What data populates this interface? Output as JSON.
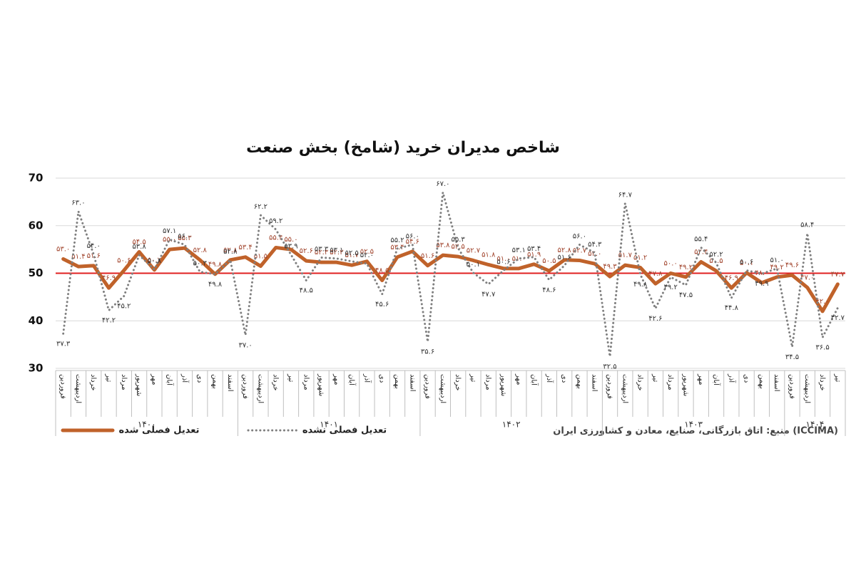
{
  "chart_data": {
    "type": "line",
    "title": "شاخص مدیران خرید (شامخ) بخش صنعت",
    "categories": [
      "فروردین",
      "اردیبهشت",
      "خرداد",
      "تیر",
      "مرداد",
      "شهریور",
      "مهر",
      "آبان",
      "آذر",
      "دی",
      "بهمن",
      "اسفند",
      "فروردین",
      "اردیبهشت",
      "خرداد",
      "تیر",
      "مرداد",
      "شهریور",
      "مهر",
      "آبان",
      "آذر",
      "دی",
      "بهمن",
      "اسفند",
      "فروردین",
      "اردیبهشت",
      "خرداد",
      "تیر",
      "مرداد",
      "شهریور",
      "مهر",
      "آبان",
      "آذر",
      "دی",
      "بهمن",
      "اسفند",
      "فروردین",
      "اردیبهشت",
      "خرداد",
      "تیر",
      "مرداد",
      "شهریور",
      "مهر",
      "آبان",
      "آذر",
      "دی",
      "بهمن",
      "اسفند",
      "فروردین",
      "اردیبهشت",
      "خرداد",
      "تیر"
    ],
    "years": [
      "۱۴۰۰",
      "۱۴۰۱",
      "۱۴۰۲",
      "۱۴۰۳",
      "۱۴۰۴"
    ],
    "series": [
      {
        "name": "تعدیل فصلی شده",
        "color": "#c0622a",
        "style": "solid",
        "values": [
          53.0,
          51.4,
          51.6,
          46.9,
          50.6,
          54.5,
          50.7,
          55.0,
          55.3,
          52.8,
          49.8,
          52.8,
          53.4,
          51.5,
          55.4,
          55.0,
          52.6,
          52.3,
          52.3,
          51.7,
          52.5,
          48.5,
          53.4,
          54.6,
          51.6,
          53.8,
          53.5,
          52.7,
          51.8,
          51.0,
          51.0,
          51.9,
          50.5,
          52.8,
          52.7,
          52.0,
          49.3,
          51.7,
          51.2,
          47.8,
          50.0,
          49.2,
          52.4,
          50.5,
          46.9,
          50.1,
          48.0,
          49.2,
          49.6,
          47.0,
          42.0,
          47.7
        ],
        "value_labels": [
          "۵۳.۰",
          "۵۱.۴",
          "۵۱.۶",
          "۴۶.۹",
          "۵۰.۶",
          "۵۴.۵",
          "۵۰.۷",
          "۵۵.۰",
          "۵۵.۳",
          "۵۲.۸",
          "۴۹.۸",
          "۵۲.۸",
          "۵۳.۴",
          "۵۱.۵",
          "۵۵.۴",
          "۵۵.۰",
          "۵۲.۶",
          "۵۲.۳",
          "۵۲.۳",
          "۵۱.۷",
          "۵۲.۵",
          "۴۸.۵",
          "۵۳.۴",
          "۵۴.۶",
          "۵۱.۶",
          "۵۳.۸",
          "۵۳.۵",
          "۵۲.۷",
          "۵۱.۸",
          "۵۱.۰",
          "۵۱.۰",
          "۵۱.۹",
          "۵۰.۵",
          "۵۲.۸",
          "۵۲.۷",
          "۵۲.۰",
          "۴۹.۳",
          "۵۱.۷",
          "۵۱.۲",
          "۴۷.۸",
          "۵۰.۰",
          "۴۹.۲",
          "۵۲.۴",
          "۵۰.۵",
          "۴۶.۹",
          "۵۰.۱",
          "۴۸.۰",
          "۴۹.۲",
          "۴۹.۶",
          "۴۷.۰",
          "۴۲.۰",
          "۴۷.۷"
        ]
      },
      {
        "name": "تعدیل فصلی نشده",
        "color": "#7f7f7f",
        "style": "dotted",
        "values": [
          37.3,
          63.0,
          54.0,
          42.2,
          45.2,
          53.8,
          50.8,
          57.1,
          56.0,
          50.3,
          49.8,
          52.8,
          37.0,
          62.2,
          59.2,
          53.9,
          48.5,
          53.3,
          53.1,
          52.5,
          52.0,
          45.6,
          55.2,
          56.0,
          35.6,
          67.0,
          55.3,
          50.1,
          47.7,
          50.6,
          53.1,
          53.4,
          48.6,
          51.6,
          56.0,
          54.3,
          32.5,
          64.7,
          49.8,
          42.6,
          49.2,
          47.5,
          55.4,
          52.2,
          44.8,
          50.6,
          49.9,
          51.0,
          34.5,
          58.4,
          36.5,
          42.7
        ],
        "value_labels": [
          "۳۷.۳",
          "۶۳.۰",
          "۵۴.۰",
          "۴۲.۲",
          "۴۵.۲",
          "۵۳.۸",
          "۵۰.۸",
          "۵۷.۱",
          "۵۶.۰",
          "۵۰.۳",
          "۴۹.۸",
          "۵۲.۸",
          "۳۷.۰",
          "۶۲.۲",
          "۵۹.۲",
          "۵۳.۹",
          "۴۸.۵",
          "۵۳.۳",
          "۵۳.۱",
          "۵۲.۵",
          "۵۲.۰",
          "۴۵.۶",
          "۵۵.۲",
          "۵۶.۰",
          "۳۵.۶",
          "۶۷.۰",
          "۵۵.۳",
          "۵۰.۱",
          "۴۷.۷",
          "۵۰.۶",
          "۵۳.۱",
          "۵۳.۴",
          "۴۸.۶",
          "۵۱.۶",
          "۵۶.۰",
          "۵۴.۳",
          "۳۲.۵",
          "۶۴.۷",
          "۴۹.۸",
          "۴۲.۶",
          "۴۹.۲",
          "۴۷.۵",
          "۵۵.۴",
          "۵۲.۲",
          "۴۴.۸",
          "۵۰.۶",
          "۴۹.۹",
          "۵۱.۰",
          "۳۴.۵",
          "۵۸.۴",
          "۳۶.۵",
          "۴۲.۷"
        ]
      }
    ],
    "reference_line": 50,
    "reference_color": "#e02020",
    "ylim": [
      30,
      70
    ],
    "yticks": [
      30,
      40,
      50,
      60,
      70
    ],
    "grid": true,
    "source": "منبع: اتاق بازرگانی، صنایع، معادن و کشاورزی ایران (ICCIMA)"
  }
}
